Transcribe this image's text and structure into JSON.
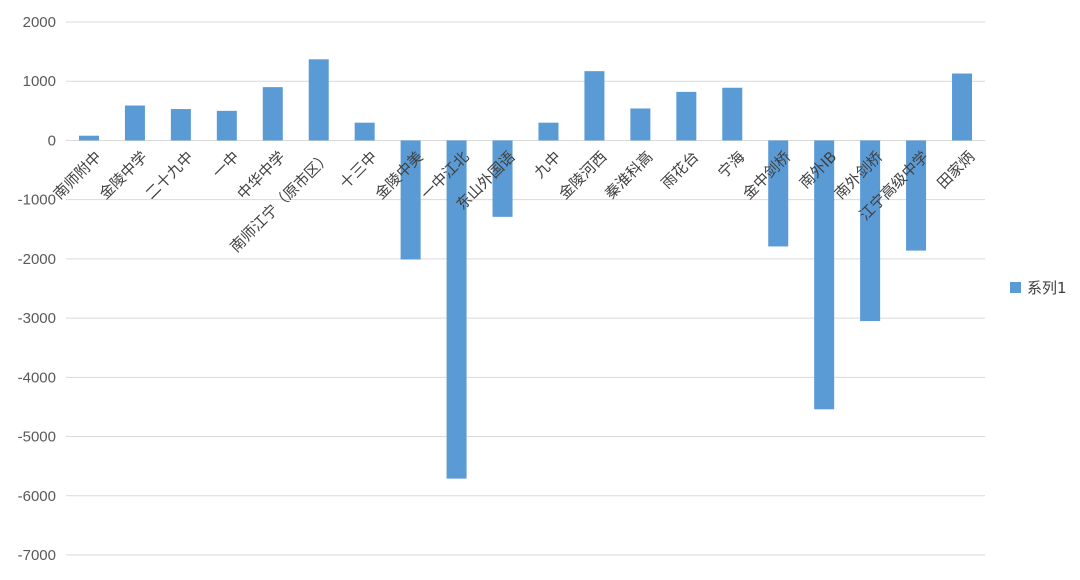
{
  "chart_data": {
    "type": "bar",
    "title": "",
    "xlabel": "",
    "ylabel": "",
    "ylim": [
      -7000,
      2000
    ],
    "yticks": [
      2000,
      1000,
      0,
      -1000,
      -2000,
      -3000,
      -4000,
      -5000,
      -6000,
      -7000
    ],
    "grid": true,
    "legend_position": "right",
    "colors": {
      "series": "#5b9bd5",
      "grid": "#d9d9d9"
    },
    "categories": [
      "南师附中",
      "金陵中学",
      "二十九中",
      "一中",
      "中华中学",
      "南师江宁（原市区）",
      "十三中",
      "金陵中美",
      "一中江北",
      "东山外国语",
      "九中",
      "金陵河西",
      "秦淮科高",
      "雨花台",
      "宁海",
      "金中剑桥",
      "南外IB",
      "南外剑桥",
      "江宁高级中学",
      "田家炳"
    ],
    "series": [
      {
        "name": "系列1",
        "values": [
          80,
          590,
          530,
          500,
          900,
          1370,
          300,
          -2010,
          -5710,
          -1290,
          300,
          1170,
          540,
          820,
          890,
          -1790,
          -4540,
          -3050,
          -1860,
          1130
        ]
      }
    ]
  }
}
